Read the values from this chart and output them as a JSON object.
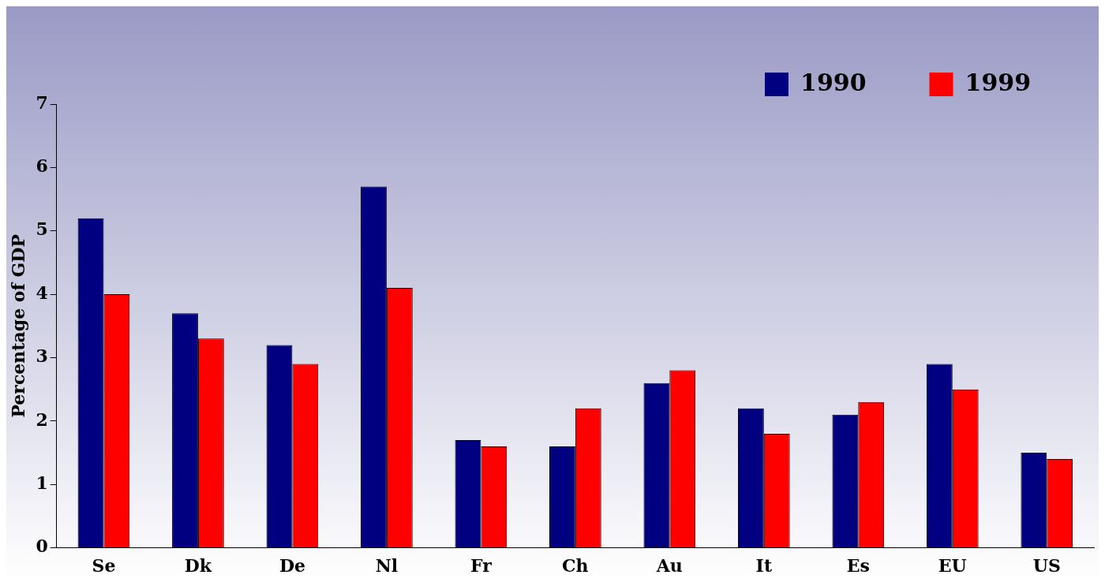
{
  "chart_data": {
    "type": "bar",
    "ylabel": "Percentage of GDP",
    "categories": [
      "Se",
      "Dk",
      "De",
      "Nl",
      "Fr",
      "Ch",
      "Au",
      "It",
      "Es",
      "EU",
      "US"
    ],
    "series": [
      {
        "name": "1990",
        "color": "#000080",
        "values": [
          5.2,
          3.7,
          3.2,
          5.7,
          1.7,
          1.6,
          2.6,
          2.2,
          2.1,
          2.9,
          1.5
        ]
      },
      {
        "name": "1999",
        "color": "#ff0000",
        "values": [
          4.0,
          3.3,
          2.9,
          4.1,
          1.6,
          2.2,
          2.8,
          1.8,
          2.3,
          2.5,
          1.4
        ]
      }
    ],
    "ylim": [
      0,
      7
    ],
    "yticks": [
      0,
      1,
      2,
      3,
      4,
      5,
      6,
      7
    ],
    "grid": false,
    "legend": "top right"
  }
}
